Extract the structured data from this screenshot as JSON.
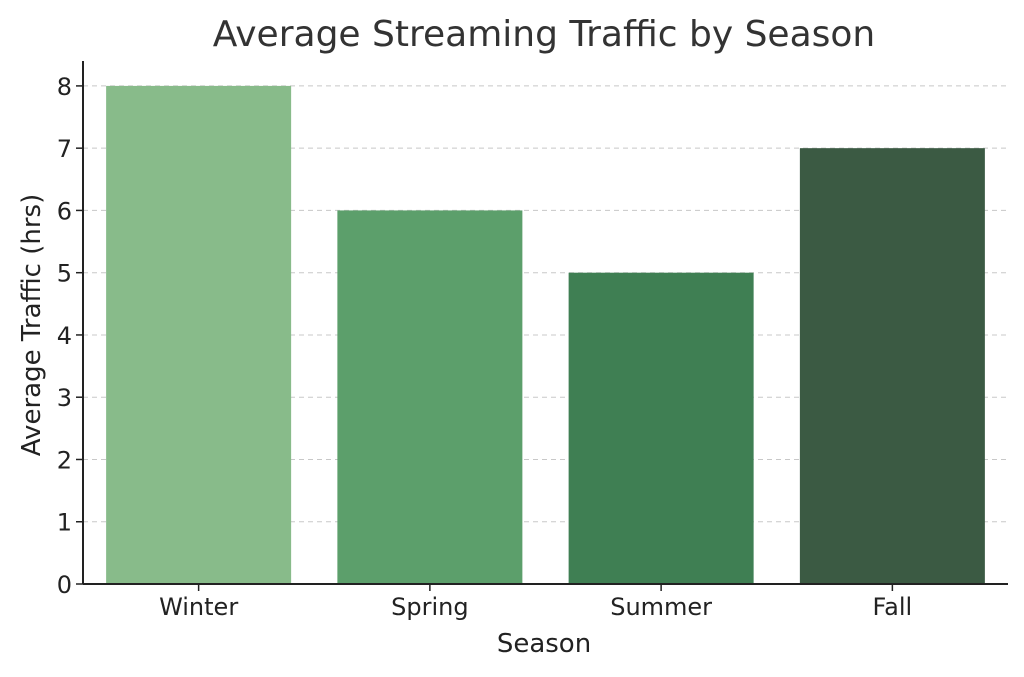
{
  "chart_data": {
    "type": "bar",
    "title": "Average Streaming Traffic by Season",
    "xlabel": "Season",
    "ylabel": "Average Traffic (hrs)",
    "categories": [
      "Winter",
      "Spring",
      "Summer",
      "Fall"
    ],
    "values": [
      8,
      6,
      5,
      7
    ],
    "colors": [
      "#88bb8a",
      "#5c9f6b",
      "#3f7f53",
      "#3b5a43"
    ],
    "ylim": [
      0,
      8.4
    ],
    "yticks": [
      0,
      1,
      2,
      3,
      4,
      5,
      6,
      7,
      8
    ],
    "grid": true,
    "gridColor": "#c8c8c8"
  }
}
